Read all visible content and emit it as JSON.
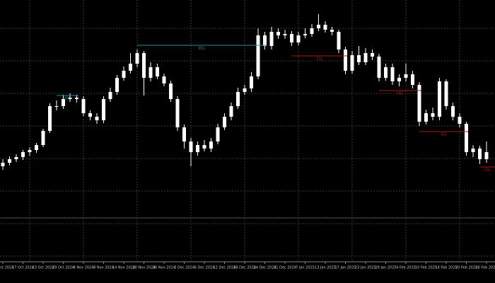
{
  "chart_data": {
    "type": "candlestick",
    "categories": [
      "15 Oct 2024",
      null,
      null,
      "17 Oct 2024",
      null,
      null,
      "23 Oct 2024",
      null,
      null,
      "29 Oct 2024",
      null,
      null,
      "4 Nov 2024",
      null,
      null,
      "8 Nov 2024",
      null,
      null,
      "14 Nov 2024",
      null,
      null,
      "20 Nov 2024",
      null,
      null,
      "26 Nov 2024",
      null,
      null,
      "2 Dec 2024",
      null,
      null,
      "6 Dec 2024",
      null,
      null,
      "12 Dec 2024",
      null,
      null,
      "18 Dec 2024",
      null,
      null,
      "24 Dec 2024",
      null,
      null,
      "31 Dec 2024",
      null,
      null,
      "7 Jan 2025",
      null,
      null,
      "13 Jan 2025",
      null,
      null,
      "17 Jan 2025",
      null,
      null,
      "23 Jan 2025",
      null,
      null,
      "29 Jan 2025",
      null,
      null,
      "4 Feb 2025",
      null,
      null,
      "10 Feb 2025",
      null,
      null,
      "14 Feb 2025",
      null,
      null,
      "20 Feb 2025",
      null,
      null,
      "26 Feb 2025"
    ],
    "open": [
      135,
      140,
      145,
      148,
      155,
      158,
      165,
      185,
      220,
      220,
      230,
      232,
      230,
      210,
      205,
      200,
      230,
      240,
      260,
      270,
      280,
      295,
      260,
      275,
      262,
      252,
      230,
      190,
      170,
      155,
      165,
      160,
      170,
      190,
      205,
      220,
      240,
      245,
      262,
      320,
      305,
      325,
      320,
      322,
      310,
      320,
      322,
      330,
      335,
      328,
      325,
      300,
      270,
      292,
      282,
      295,
      290,
      260,
      275,
      255,
      260,
      265,
      250,
      198,
      210,
      205,
      255,
      220,
      205,
      195,
      155,
      160,
      145
    ],
    "high": [
      145,
      149,
      152,
      158,
      162,
      168,
      188,
      224,
      228,
      236,
      238,
      236,
      234,
      214,
      210,
      234,
      246,
      264,
      276,
      295,
      300,
      298,
      282,
      280,
      266,
      256,
      234,
      194,
      175,
      170,
      172,
      175,
      195,
      210,
      225,
      246,
      250,
      268,
      330,
      325,
      332,
      330,
      328,
      326,
      325,
      330,
      336,
      350,
      340,
      332,
      328,
      304,
      298,
      305,
      302,
      300,
      294,
      280,
      280,
      265,
      280,
      270,
      254,
      215,
      218,
      260,
      258,
      225,
      210,
      198,
      165,
      164,
      170
    ],
    "low": [
      130,
      136,
      141,
      144,
      150,
      154,
      162,
      182,
      214,
      216,
      226,
      225,
      206,
      200,
      195,
      196,
      226,
      236,
      256,
      266,
      275,
      235,
      255,
      258,
      248,
      226,
      185,
      160,
      135,
      150,
      156,
      155,
      166,
      186,
      200,
      216,
      236,
      240,
      258,
      300,
      300,
      315,
      315,
      305,
      306,
      316,
      318,
      326,
      324,
      320,
      295,
      265,
      266,
      278,
      278,
      285,
      255,
      256,
      250,
      248,
      255,
      245,
      192,
      194,
      200,
      200,
      215,
      200,
      190,
      150,
      148,
      138,
      140
    ],
    "close": [
      140,
      145,
      148,
      155,
      158,
      165,
      185,
      220,
      220,
      230,
      232,
      230,
      210,
      205,
      200,
      230,
      240,
      260,
      270,
      280,
      295,
      260,
      275,
      262,
      252,
      230,
      190,
      170,
      155,
      165,
      160,
      170,
      190,
      205,
      220,
      240,
      245,
      262,
      320,
      305,
      325,
      320,
      322,
      310,
      320,
      322,
      330,
      335,
      328,
      325,
      300,
      270,
      292,
      282,
      295,
      290,
      260,
      275,
      255,
      260,
      265,
      250,
      198,
      210,
      205,
      255,
      220,
      205,
      195,
      155,
      160,
      145,
      155
    ],
    "color": "#ffffff",
    "ylim": [
      0,
      370
    ],
    "levels": [
      {
        "label": "BSL",
        "value": 306,
        "start": 20,
        "end": 38,
        "color": "#2a8a9a"
      },
      {
        "label": "BSL",
        "value": 235,
        "start": 8,
        "end": 10,
        "color": "#2a8a9a"
      },
      {
        "label": "SSL",
        "value": 291,
        "start": 43,
        "end": 50,
        "color": "#b01818"
      },
      {
        "label": "SSL",
        "value": 242,
        "start": 56,
        "end": 61,
        "color": "#b01818"
      },
      {
        "label": "SSL",
        "value": 184,
        "start": 62,
        "end": 68,
        "color": "#b01818"
      },
      {
        "label": "SSL",
        "value": 134,
        "start": 71,
        "end": 72,
        "color": "#b01818"
      }
    ]
  }
}
